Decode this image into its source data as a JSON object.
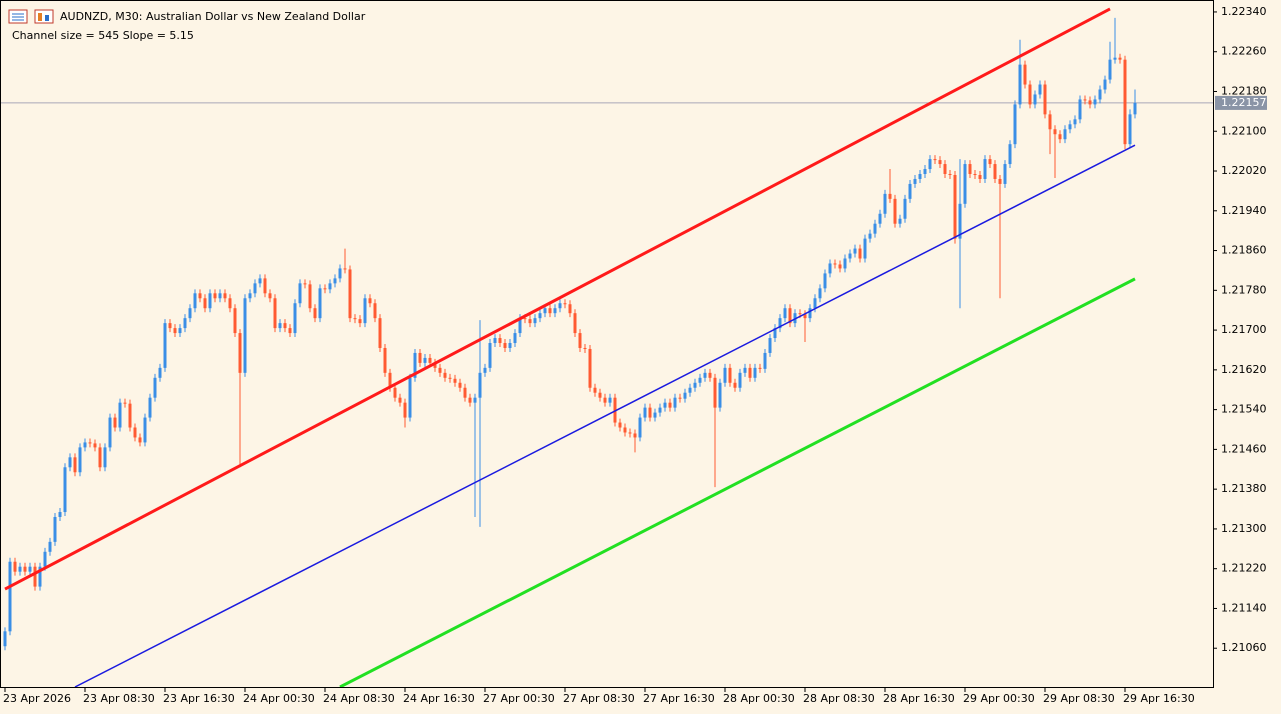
{
  "chart_data": {
    "type": "candlestick",
    "title": "AUDNZD, M30:  Australian Dollar vs New Zealand Dollar",
    "subtitle": "Channel size = 545 Slope = 5.15",
    "up_color": "#3a8ee6",
    "down_color": "#ff5a32",
    "categories": [
      "23 Apr 2026",
      null,
      null,
      null,
      null,
      null,
      null,
      null,
      null,
      null,
      null,
      null,
      null,
      null,
      null,
      null,
      "23 Apr 08:30",
      null,
      null,
      null,
      null,
      null,
      null,
      null,
      null,
      null,
      null,
      null,
      null,
      null,
      null,
      null,
      "23 Apr 16:30",
      null,
      null,
      null,
      null,
      null,
      null,
      null,
      null,
      null,
      null,
      null,
      null,
      null,
      null,
      null,
      "24 Apr 00:30",
      null,
      null,
      null,
      null,
      null,
      null,
      null,
      null,
      null,
      null,
      null,
      null,
      null,
      null,
      null,
      "24 Apr 08:30",
      null,
      null,
      null,
      null,
      null,
      null,
      null,
      null,
      null,
      null,
      null,
      null,
      null,
      null,
      null,
      "24 Apr 16:30",
      null,
      null,
      null,
      null,
      null,
      null,
      null,
      null,
      null,
      null,
      null,
      null,
      null,
      null,
      null,
      "27 Apr 00:30",
      null,
      null,
      null,
      null,
      null,
      null,
      null,
      null,
      null,
      null,
      null,
      null,
      null,
      null,
      null,
      "27 Apr 08:30",
      null,
      null,
      null,
      null,
      null,
      null,
      null,
      null,
      null,
      null,
      null,
      null,
      null,
      null,
      null,
      "27 Apr 16:30",
      null,
      null,
      null,
      null,
      null,
      null,
      null,
      null,
      null,
      null,
      null,
      null,
      null,
      null,
      null,
      "28 Apr 00:30",
      null,
      null,
      null,
      null,
      null,
      null,
      null,
      null,
      null,
      null,
      null,
      null,
      null,
      null,
      null,
      "28 Apr 08:30",
      null,
      null,
      null,
      null,
      null,
      null,
      null,
      null,
      null,
      null,
      null,
      null,
      null,
      null,
      null,
      "28 Apr 16:30",
      null,
      null,
      null,
      null,
      null,
      null,
      null,
      null,
      null,
      null,
      null,
      null,
      null,
      null,
      null,
      "29 Apr 00:30",
      null,
      null,
      null,
      null,
      null,
      null,
      null,
      null,
      null,
      null,
      null,
      null,
      null,
      null,
      null,
      "29 Apr 08:30",
      null,
      null,
      null,
      null,
      null,
      null,
      null,
      null,
      null,
      null,
      null,
      null,
      null,
      null,
      null,
      "29 Apr 16:30",
      null,
      null
    ],
    "open": [
      1.21064,
      1.21094,
      1.21234,
      1.21214,
      1.21224,
      1.21214,
      1.21224,
      1.21184,
      1.21224,
      1.21254,
      1.21274,
      1.21324,
      1.21334,
      1.21424,
      1.21444,
      1.21414,
      1.21464,
      1.21474,
      1.21472,
      1.21464,
      1.21424,
      1.21464,
      1.21524,
      1.21504,
      1.21554,
      1.21552,
      1.21504,
      1.21484,
      1.21474,
      1.21524,
      1.21564,
      1.21604,
      1.21624,
      1.21714,
      1.21704,
      1.21694,
      1.21704,
      1.21724,
      1.21744,
      1.21774,
      1.21764,
      1.21744,
      1.21774,
      1.21764,
      1.21774,
      1.21764,
      1.21744,
      1.21694,
      1.21614,
      1.21764,
      1.21774,
      1.21794,
      1.21804,
      1.21774,
      1.21764,
      1.21704,
      1.21714,
      1.21704,
      1.21694,
      1.21754,
      1.21794,
      1.21792,
      1.21744,
      1.21724,
      1.21784,
      1.21782,
      1.21794,
      1.21804,
      1.21824,
      1.21822,
      1.21724,
      1.21722,
      1.21714,
      1.21764,
      1.21754,
      1.21724,
      1.21664,
      1.21614,
      1.21584,
      1.21564,
      1.21554,
      1.21524,
      1.21604,
      1.21654,
      1.21634,
      1.21644,
      1.21634,
      1.21624,
      1.21614,
      1.21604,
      1.21602,
      1.21594,
      1.21584,
      1.21564,
      1.21554,
      1.21564,
      1.21614,
      1.21624,
      1.21674,
      1.21684,
      1.21674,
      1.21664,
      1.21674,
      1.21694,
      1.21724,
      1.21722,
      1.21714,
      1.21724,
      1.21734,
      1.21744,
      1.21734,
      1.21744,
      1.21754,
      1.21752,
      1.21734,
      1.21694,
      1.21664,
      1.21662,
      1.21584,
      1.21574,
      1.21564,
      1.21554,
      1.21564,
      1.21514,
      1.21504,
      1.21494,
      1.21492,
      1.21484,
      1.21524,
      1.21544,
      1.21524,
      1.21534,
      1.21544,
      1.21554,
      1.21544,
      1.21564,
      1.21562,
      1.21574,
      1.21584,
      1.21594,
      1.21604,
      1.21614,
      1.21604,
      1.21544,
      1.21594,
      1.21624,
      1.21594,
      1.21584,
      1.21614,
      1.21624,
      1.21604,
      1.21624,
      1.21622,
      1.21654,
      1.21684,
      1.21704,
      1.21724,
      1.21744,
      1.21714,
      1.21734,
      1.21732,
      1.21724,
      1.21744,
      1.21764,
      1.21784,
      1.21814,
      1.21834,
      1.21832,
      1.21824,
      1.21844,
      1.21854,
      1.21864,
      1.21844,
      1.21884,
      1.21894,
      1.21914,
      1.21934,
      1.21974,
      1.21964,
      1.21914,
      1.21924,
      1.21964,
      1.21994,
      1.22004,
      1.22014,
      1.22024,
      1.22044,
      1.22042,
      1.22034,
      1.22014,
      1.22012,
      1.21884,
      1.21954,
      1.22034,
      1.22014,
      1.22012,
      1.22004,
      1.22044,
      1.22034,
      1.22004,
      1.21994,
      1.22034,
      1.22074,
      1.22154,
      1.22234,
      1.22194,
      1.22154,
      1.22174,
      1.22194,
      1.22134,
      1.22104,
      1.22094,
      1.22084,
      1.22104,
      1.22114,
      1.22124,
      1.22164,
      1.22162,
      1.22154,
      1.22164,
      1.22184,
      1.22204,
      1.22244,
      1.22248,
      1.22244,
      1.22074,
      1.22134
    ],
    "high": [
      1.21102,
      1.21242,
      1.21242,
      1.21232,
      1.21232,
      1.21232,
      1.21232,
      1.21232,
      1.21262,
      1.21282,
      1.21332,
      1.21342,
      1.21432,
      1.21452,
      1.21452,
      1.21472,
      1.21482,
      1.21482,
      1.2148,
      1.21472,
      1.21472,
      1.21532,
      1.21532,
      1.21562,
      1.21562,
      1.2156,
      1.21512,
      1.21492,
      1.21532,
      1.21572,
      1.21612,
      1.21632,
      1.21722,
      1.21722,
      1.21712,
      1.21712,
      1.21732,
      1.21752,
      1.21782,
      1.21782,
      1.21772,
      1.21782,
      1.21782,
      1.21782,
      1.21782,
      1.21772,
      1.21752,
      1.21702,
      1.21772,
      1.21782,
      1.21802,
      1.21812,
      1.21812,
      1.21782,
      1.21772,
      1.21722,
      1.21722,
      1.21712,
      1.21762,
      1.21802,
      1.21802,
      1.218,
      1.21752,
      1.21792,
      1.21792,
      1.21802,
      1.21812,
      1.21832,
      1.21864,
      1.2183,
      1.21732,
      1.2173,
      1.21772,
      1.21772,
      1.21762,
      1.21732,
      1.21672,
      1.21622,
      1.21592,
      1.21572,
      1.21562,
      1.21612,
      1.21662,
      1.21662,
      1.21652,
      1.21652,
      1.21642,
      1.21632,
      1.21622,
      1.21612,
      1.2161,
      1.21602,
      1.21592,
      1.21572,
      1.21572,
      1.2172,
      1.21632,
      1.21682,
      1.21692,
      1.21692,
      1.21682,
      1.21682,
      1.21702,
      1.21732,
      1.21732,
      1.2173,
      1.21732,
      1.21742,
      1.21752,
      1.21752,
      1.21752,
      1.21762,
      1.21762,
      1.2176,
      1.21742,
      1.21702,
      1.21672,
      1.2167,
      1.21592,
      1.21582,
      1.21572,
      1.21572,
      1.21572,
      1.21522,
      1.21512,
      1.21502,
      1.215,
      1.21532,
      1.21552,
      1.21552,
      1.21542,
      1.21552,
      1.21562,
      1.21562,
      1.21572,
      1.21572,
      1.21582,
      1.21592,
      1.21602,
      1.21612,
      1.21622,
      1.21622,
      1.21612,
      1.21602,
      1.21632,
      1.21632,
      1.21602,
      1.21622,
      1.21632,
      1.21632,
      1.21632,
      1.21632,
      1.21662,
      1.21692,
      1.21712,
      1.21732,
      1.21752,
      1.21752,
      1.21742,
      1.21742,
      1.2174,
      1.21752,
      1.21772,
      1.21792,
      1.21822,
      1.21842,
      1.21842,
      1.2184,
      1.21852,
      1.21862,
      1.21872,
      1.21872,
      1.21892,
      1.21902,
      1.21922,
      1.21942,
      1.21982,
      1.22024,
      1.21972,
      1.21932,
      1.21972,
      1.22002,
      1.22012,
      1.22022,
      1.22032,
      1.22052,
      1.22052,
      1.2205,
      1.22042,
      1.22022,
      1.2202,
      1.22044,
      1.22042,
      1.22042,
      1.22022,
      1.2202,
      1.22052,
      1.22052,
      1.22042,
      1.22012,
      1.22042,
      1.22082,
      1.22162,
      1.22284,
      1.22242,
      1.22202,
      1.22182,
      1.22202,
      1.22202,
      1.22142,
      1.22112,
      1.22102,
      1.22112,
      1.22122,
      1.22132,
      1.22172,
      1.22172,
      1.2217,
      1.22172,
      1.22192,
      1.22212,
      1.2228,
      1.22328,
      1.22256,
      1.22252,
      1.22144,
      1.22184
    ],
    "low": [
      1.21056,
      1.21086,
      1.21206,
      1.21206,
      1.21206,
      1.21206,
      1.21176,
      1.21176,
      1.21216,
      1.21246,
      1.21266,
      1.21316,
      1.21326,
      1.21416,
      1.21406,
      1.21406,
      1.21456,
      1.21464,
      1.21456,
      1.21416,
      1.21416,
      1.21456,
      1.21496,
      1.21496,
      1.21544,
      1.21496,
      1.21476,
      1.21466,
      1.21466,
      1.21516,
      1.21556,
      1.21596,
      1.21616,
      1.21696,
      1.21686,
      1.21686,
      1.21696,
      1.21716,
      1.21736,
      1.21756,
      1.21736,
      1.21736,
      1.21756,
      1.21756,
      1.21756,
      1.21736,
      1.21686,
      1.21424,
      1.21606,
      1.21756,
      1.21766,
      1.21786,
      1.21766,
      1.21756,
      1.21696,
      1.21696,
      1.21696,
      1.21686,
      1.21686,
      1.21746,
      1.21784,
      1.21736,
      1.21716,
      1.21716,
      1.21774,
      1.21774,
      1.21786,
      1.21796,
      1.21814,
      1.21716,
      1.21714,
      1.21706,
      1.21706,
      1.21746,
      1.21716,
      1.21656,
      1.21606,
      1.21576,
      1.21556,
      1.21546,
      1.21504,
      1.21516,
      1.21596,
      1.21626,
      1.21626,
      1.21626,
      1.21616,
      1.21606,
      1.21596,
      1.21594,
      1.21586,
      1.21576,
      1.21556,
      1.21546,
      1.21324,
      1.21304,
      1.21606,
      1.21616,
      1.21666,
      1.21666,
      1.21656,
      1.21656,
      1.21666,
      1.21686,
      1.21714,
      1.21706,
      1.21706,
      1.21716,
      1.21726,
      1.21726,
      1.21726,
      1.21736,
      1.21744,
      1.21726,
      1.21686,
      1.21656,
      1.21654,
      1.21576,
      1.21566,
      1.21556,
      1.21546,
      1.21546,
      1.21506,
      1.21496,
      1.21486,
      1.21484,
      1.21454,
      1.21476,
      1.21516,
      1.21516,
      1.21516,
      1.21526,
      1.21536,
      1.21536,
      1.21536,
      1.21554,
      1.21554,
      1.21566,
      1.21576,
      1.21586,
      1.21596,
      1.21596,
      1.21384,
      1.21536,
      1.21586,
      1.21586,
      1.21576,
      1.21576,
      1.21606,
      1.21596,
      1.21596,
      1.21614,
      1.21614,
      1.21646,
      1.21676,
      1.21696,
      1.21716,
      1.21706,
      1.21706,
      1.21724,
      1.21676,
      1.21716,
      1.21736,
      1.21756,
      1.21776,
      1.21806,
      1.21824,
      1.21816,
      1.21816,
      1.21836,
      1.21846,
      1.21836,
      1.21836,
      1.21876,
      1.21886,
      1.21906,
      1.21926,
      1.21956,
      1.21906,
      1.21906,
      1.21916,
      1.21956,
      1.21986,
      1.21996,
      1.22006,
      1.22016,
      1.22034,
      1.22026,
      1.22006,
      1.22004,
      1.21874,
      1.21744,
      1.21946,
      1.22006,
      1.22004,
      1.21996,
      1.21996,
      1.22026,
      1.21996,
      1.21764,
      1.21986,
      1.22026,
      1.22066,
      1.22146,
      1.22186,
      1.22146,
      1.22146,
      1.22166,
      1.22126,
      1.22054,
      1.22006,
      1.22076,
      1.22076,
      1.22096,
      1.22106,
      1.22116,
      1.22154,
      1.22146,
      1.22146,
      1.22156,
      1.22176,
      1.22196,
      1.22236,
      1.22236,
      1.22064,
      1.22066,
      1.22126
    ],
    "close": [
      1.21094,
      1.21234,
      1.21214,
      1.21224,
      1.21214,
      1.21224,
      1.21184,
      1.21224,
      1.21254,
      1.21274,
      1.21324,
      1.21334,
      1.21424,
      1.21444,
      1.21414,
      1.21464,
      1.21474,
      1.21472,
      1.21464,
      1.21424,
      1.21464,
      1.21524,
      1.21504,
      1.21554,
      1.21552,
      1.21504,
      1.21484,
      1.21474,
      1.21524,
      1.21564,
      1.21604,
      1.21624,
      1.21714,
      1.21704,
      1.21694,
      1.21704,
      1.21724,
      1.21744,
      1.21774,
      1.21764,
      1.21744,
      1.21774,
      1.21764,
      1.21774,
      1.21764,
      1.21744,
      1.21694,
      1.21614,
      1.21764,
      1.21774,
      1.21794,
      1.21804,
      1.21774,
      1.21764,
      1.21704,
      1.21714,
      1.21704,
      1.21694,
      1.21754,
      1.21794,
      1.21792,
      1.21744,
      1.21724,
      1.21784,
      1.21782,
      1.21794,
      1.21804,
      1.21824,
      1.21822,
      1.21724,
      1.21722,
      1.21714,
      1.21764,
      1.21754,
      1.21724,
      1.21664,
      1.21614,
      1.21584,
      1.21564,
      1.21554,
      1.21524,
      1.21604,
      1.21654,
      1.21634,
      1.21644,
      1.21634,
      1.21624,
      1.21614,
      1.21604,
      1.21602,
      1.21594,
      1.21584,
      1.21564,
      1.21554,
      1.21564,
      1.21614,
      1.21624,
      1.21674,
      1.21684,
      1.21674,
      1.21664,
      1.21674,
      1.21694,
      1.21724,
      1.21722,
      1.21714,
      1.21724,
      1.21734,
      1.21744,
      1.21734,
      1.21744,
      1.21754,
      1.21752,
      1.21734,
      1.21694,
      1.21664,
      1.21662,
      1.21584,
      1.21574,
      1.21564,
      1.21554,
      1.21564,
      1.21514,
      1.21504,
      1.21494,
      1.21492,
      1.21484,
      1.21524,
      1.21544,
      1.21524,
      1.21534,
      1.21544,
      1.21554,
      1.21544,
      1.21564,
      1.21562,
      1.21574,
      1.21584,
      1.21594,
      1.21604,
      1.21614,
      1.21604,
      1.21544,
      1.21594,
      1.21624,
      1.21594,
      1.21584,
      1.21614,
      1.21624,
      1.21604,
      1.21624,
      1.21622,
      1.21654,
      1.21684,
      1.21704,
      1.21724,
      1.21744,
      1.21714,
      1.21734,
      1.21732,
      1.21724,
      1.21744,
      1.21764,
      1.21784,
      1.21814,
      1.21834,
      1.21832,
      1.21824,
      1.21844,
      1.21854,
      1.21864,
      1.21844,
      1.21884,
      1.21894,
      1.21914,
      1.21934,
      1.21974,
      1.21964,
      1.21914,
      1.21924,
      1.21964,
      1.21994,
      1.22004,
      1.22014,
      1.22024,
      1.22044,
      1.22042,
      1.22034,
      1.22014,
      1.22012,
      1.21884,
      1.21954,
      1.22034,
      1.22014,
      1.22012,
      1.22004,
      1.22044,
      1.22034,
      1.22004,
      1.21994,
      1.22034,
      1.22074,
      1.22154,
      1.22234,
      1.22194,
      1.22154,
      1.22174,
      1.22194,
      1.22134,
      1.22104,
      1.22094,
      1.22084,
      1.22104,
      1.22114,
      1.22124,
      1.22164,
      1.22162,
      1.22154,
      1.22164,
      1.22184,
      1.22204,
      1.22244,
      1.22248,
      1.22244,
      1.22074,
      1.22134,
      1.22157
    ],
    "ylim": [
      1.20982,
      1.22358
    ],
    "yticks": [
      {
        "value": 1.2106,
        "label": "1.21060"
      },
      {
        "value": 1.2114,
        "label": "1.21140"
      },
      {
        "value": 1.2122,
        "label": "1.21220"
      },
      {
        "value": 1.213,
        "label": "1.21300"
      },
      {
        "value": 1.2138,
        "label": "1.21380"
      },
      {
        "value": 1.2146,
        "label": "1.21460"
      },
      {
        "value": 1.2154,
        "label": "1.21540"
      },
      {
        "value": 1.2162,
        "label": "1.21620"
      },
      {
        "value": 1.217,
        "label": "1.21700"
      },
      {
        "value": 1.2178,
        "label": "1.21780"
      },
      {
        "value": 1.2186,
        "label": "1.21860"
      },
      {
        "value": 1.2194,
        "label": "1.21940"
      },
      {
        "value": 1.2202,
        "label": "1.22020"
      },
      {
        "value": 1.221,
        "label": "1.22100"
      },
      {
        "value": 1.2218,
        "label": "1.22180"
      },
      {
        "value": 1.2226,
        "label": "1.22260"
      },
      {
        "value": 1.2234,
        "label": "1.22340"
      }
    ],
    "price_line": 1.22157,
    "channels": [
      {
        "color": "#ff1a1a",
        "width": 3,
        "start_index": 0,
        "start": 1.21179,
        "end_index": 221,
        "end": 1.22346
      },
      {
        "color": "#1a1adf",
        "width": 1.5,
        "start_index": 14,
        "start": 1.20982,
        "end_index": 226,
        "end": 1.22072
      },
      {
        "color": "#22e022",
        "width": 3,
        "start_index": 67,
        "start": 1.20982,
        "end_index": 226,
        "end": 1.21803
      }
    ]
  }
}
